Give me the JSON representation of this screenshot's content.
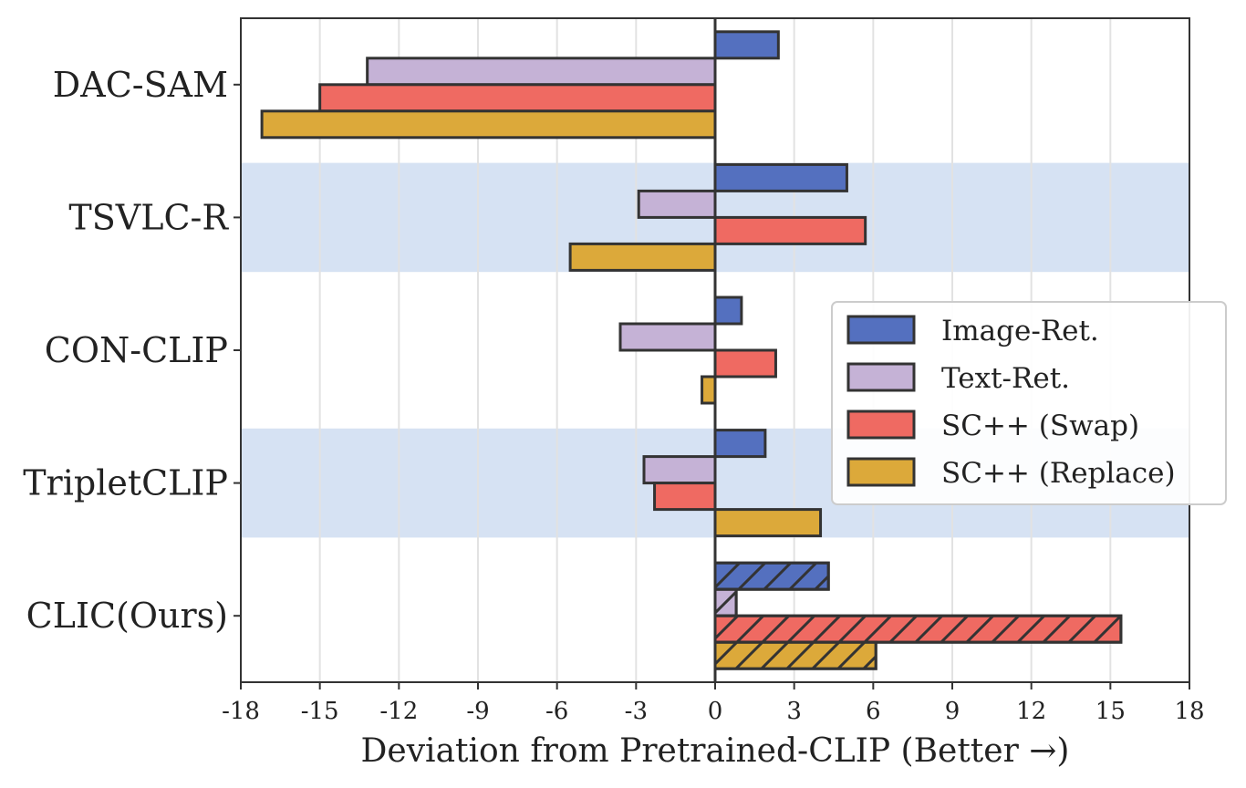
{
  "chart_data": {
    "type": "bar",
    "orientation": "horizontal",
    "categories": [
      "DAC-SAM",
      "TSVLC-R",
      "CON-CLIP",
      "TripletCLIP",
      "CLIC(Ours)"
    ],
    "series": [
      {
        "name": "Image-Ret.",
        "color": "#5470bf",
        "values": [
          2.4,
          5.0,
          1.0,
          1.9,
          4.3
        ]
      },
      {
        "name": "Text-Ret.",
        "color": "#c5b2d6",
        "values": [
          -13.2,
          -2.9,
          -3.6,
          -2.7,
          0.8
        ]
      },
      {
        "name": "SC++ (Swap)",
        "color": "#ef6a62",
        "values": [
          -15.0,
          5.7,
          2.3,
          -2.3,
          15.4
        ]
      },
      {
        "name": "SC++ (Replace)",
        "color": "#dca93a",
        "values": [
          -17.2,
          -5.5,
          -0.5,
          4.0,
          6.1
        ]
      }
    ],
    "hatched_categories": [
      "CLIC(Ours)"
    ],
    "shaded_categories": [
      "TSVLC-R",
      "TripletCLIP"
    ],
    "shade_color": "#d6e2f3",
    "xlim": [
      -18,
      18
    ],
    "xticks": [
      -18,
      -15,
      -12,
      -9,
      -6,
      -3,
      0,
      3,
      6,
      9,
      12,
      15,
      18
    ],
    "xlabel": "Deviation from Pretrained-CLIP (Better →)",
    "ylabel": "",
    "title": "",
    "grid": "vertical",
    "legend_position": "center-right"
  }
}
